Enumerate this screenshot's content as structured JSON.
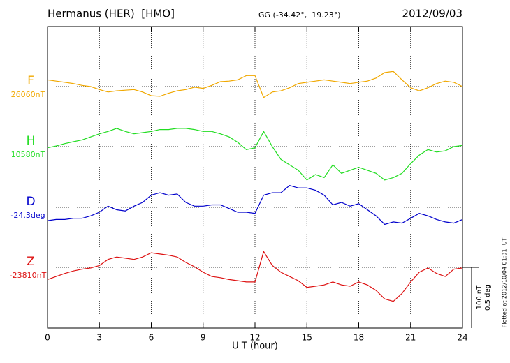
{
  "chart_data": {
    "type": "line",
    "title": "Hermanus (HER)  [HMO]",
    "subtitle": "GG (-34.42°,  19.23°)",
    "date": "2012/09/03",
    "x_label": "U T (hour)",
    "footnote": "Plotted at 2012/10/04 01:31  UT",
    "xlim": [
      0,
      24
    ],
    "xticks": [
      0,
      3,
      6,
      9,
      12,
      15,
      18,
      21,
      24
    ],
    "grid": true,
    "scale_bar": {
      "value_nT": 100,
      "label_nT": "100 nT",
      "value_deg": 0.5,
      "label_deg": "0.5 deg"
    },
    "x": [
      0,
      0.5,
      1,
      1.5,
      2,
      2.5,
      3,
      3.5,
      4,
      4.5,
      5,
      5.5,
      6,
      6.5,
      7,
      7.5,
      8,
      8.5,
      9,
      9.5,
      10,
      10.5,
      11,
      11.5,
      12,
      12.5,
      13,
      13.5,
      14,
      14.5,
      15,
      15.5,
      16,
      16.5,
      17,
      17.5,
      18,
      18.5,
      19,
      19.5,
      20,
      20.5,
      21,
      21.5,
      22,
      22.5,
      23,
      23.5,
      24
    ],
    "series": [
      {
        "name": "F",
        "baseline_label": "26060nT",
        "unit": "nT",
        "color": "#f0a800",
        "values": [
          11,
          9,
          7,
          5,
          2,
          0,
          -5,
          -9,
          -7,
          -6,
          -5,
          -9,
          -15,
          -16,
          -11,
          -7,
          -5,
          -1,
          -3,
          2,
          8,
          9,
          11,
          18,
          18,
          -18,
          -9,
          -7,
          -2,
          5,
          7,
          9,
          11,
          9,
          7,
          5,
          7,
          9,
          14,
          23,
          25,
          11,
          -2,
          -7,
          -2,
          5,
          9,
          7,
          0
        ]
      },
      {
        "name": "H",
        "baseline_label": "10580nT",
        "unit": "nT",
        "color": "#22dd22",
        "values": [
          -2,
          1,
          5,
          8,
          11,
          16,
          21,
          25,
          30,
          25,
          21,
          23,
          25,
          28,
          28,
          30,
          30,
          28,
          25,
          25,
          21,
          16,
          7,
          -5,
          -2,
          25,
          0,
          -21,
          -30,
          -39,
          -55,
          -46,
          -51,
          -30,
          -44,
          -39,
          -34,
          -39,
          -44,
          -55,
          -51,
          -44,
          -28,
          -14,
          -5,
          -9,
          -7,
          0,
          2
        ]
      },
      {
        "name": "D",
        "baseline_label": "-24.3deg",
        "unit": "deg",
        "color": "#0000cc",
        "values": [
          -0.11,
          -0.1,
          -0.1,
          -0.09,
          -0.09,
          -0.07,
          -0.04,
          0.01,
          -0.02,
          -0.03,
          0.01,
          0.04,
          0.1,
          0.12,
          0.1,
          0.11,
          0.04,
          0.01,
          0.01,
          0.02,
          0.02,
          -0.01,
          -0.04,
          -0.04,
          -0.05,
          0.1,
          0.12,
          0.12,
          0.18,
          0.16,
          0.16,
          0.14,
          0.1,
          0.02,
          0.04,
          0.01,
          0.03,
          -0.02,
          -0.07,
          -0.14,
          -0.12,
          -0.13,
          -0.09,
          -0.05,
          -0.07,
          -0.1,
          -0.12,
          -0.13,
          -0.1
        ]
      },
      {
        "name": "Z",
        "baseline_label": "-23810nT",
        "unit": "nT",
        "color": "#dd1111",
        "values": [
          -20,
          -15,
          -10,
          -6,
          -3,
          -1,
          3,
          13,
          17,
          15,
          13,
          17,
          24,
          22,
          20,
          17,
          8,
          1,
          -8,
          -15,
          -17,
          -20,
          -22,
          -24,
          -24,
          26,
          3,
          -8,
          -15,
          -22,
          -33,
          -31,
          -29,
          -24,
          -29,
          -31,
          -24,
          -29,
          -38,
          -52,
          -56,
          -43,
          -24,
          -8,
          -1,
          -10,
          -15,
          -3,
          -1
        ]
      }
    ]
  }
}
